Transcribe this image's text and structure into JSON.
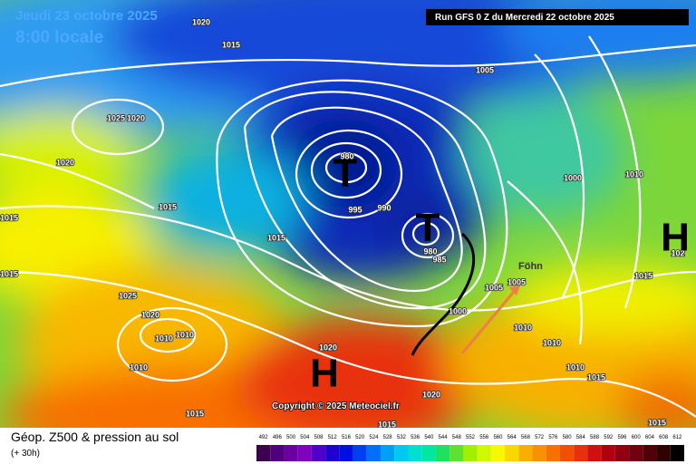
{
  "header": {
    "date": "Jeudi 23 octobre 2025",
    "time": "8:00 locale",
    "run": "Run GFS 0 Z du Mercredi 22 octobre 2025"
  },
  "map": {
    "isobar_labels": [
      1020,
      1015,
      1005,
      1025,
      1020,
      1020,
      1015,
      1015,
      1015,
      1015,
      1025,
      1020,
      1010,
      1010,
      1010,
      1015,
      1020,
      1020,
      1015,
      980,
      995,
      990,
      980,
      985,
      1000,
      1005,
      1005,
      1010,
      1010,
      1010,
      1015,
      1015,
      1015,
      1000,
      1010,
      102
    ],
    "centers": [
      "T",
      "T",
      "H",
      "H"
    ],
    "annotation": "Föhn"
  },
  "footer": {
    "copyright": "Copyright © 2025 Meteociel.fr",
    "title": "Géop. Z500 & pression au sol",
    "lead": "(+ 30h)"
  },
  "legend": {
    "values": [
      492,
      496,
      500,
      504,
      508,
      512,
      516,
      520,
      524,
      528,
      532,
      536,
      540,
      544,
      548,
      552,
      556,
      560,
      564,
      568,
      572,
      576,
      580,
      584,
      588,
      592,
      596,
      600,
      604,
      608,
      612
    ],
    "colors": [
      "#3c0050",
      "#50007a",
      "#6a00a0",
      "#8000c0",
      "#5000c8",
      "#2000d0",
      "#0010e0",
      "#0040f0",
      "#0070f8",
      "#00a0f8",
      "#00c8f0",
      "#00e0d0",
      "#00e8a0",
      "#20e060",
      "#60e030",
      "#a0f000",
      "#d0f800",
      "#f8f800",
      "#f8d800",
      "#f8b000",
      "#f89000",
      "#f87000",
      "#f05000",
      "#e83010",
      "#d01010",
      "#b00010",
      "#900010",
      "#700010",
      "#500008",
      "#300000",
      "#000000"
    ]
  }
}
